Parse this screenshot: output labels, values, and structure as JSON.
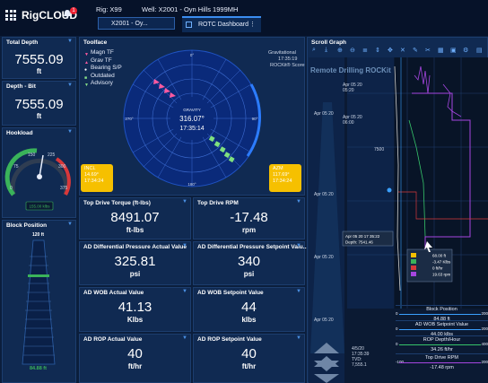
{
  "header": {
    "logo_rig": "Rig",
    "logo_cloud": "CLOUD",
    "notification_count": "1",
    "rig_label": "Rig: X99",
    "well_label": "Well: X2001 - Oyn Hills 1999MH",
    "rig_select_value": "X2001 - Oy...",
    "tab_label": "ROTC Dashboard",
    "tab_menu": "⋮"
  },
  "total_depth": {
    "title": "Total Depth",
    "value": "7555.09",
    "unit": "ft"
  },
  "depth_bit": {
    "title": "Depth - Bit",
    "value": "7555.09",
    "unit": "ft"
  },
  "hookload": {
    "title": "Hookload",
    "readout": "155.00 klbs",
    "ticks": [
      "0",
      "75",
      "150",
      "225",
      "300",
      "375"
    ]
  },
  "block_position": {
    "title": "Block Position",
    "top_value": "120",
    "top_unit": "ft",
    "bottom_value": "84.88",
    "bottom_unit": "ft"
  },
  "toolface": {
    "title": "Toolface",
    "legend": [
      {
        "label": "Magn TF",
        "color": "#ff5aa0",
        "marker": "▼"
      },
      {
        "label": "Grav TF",
        "color": "#ff5aa0",
        "marker": "▲"
      },
      {
        "label": "Bearing S/P",
        "color": "#ffffff",
        "marker": "●"
      },
      {
        "label": "Outdated",
        "color": "#88e088",
        "marker": "■"
      },
      {
        "label": "Advisory",
        "color": "#88e088",
        "marker": "▼"
      }
    ],
    "side_title": "Gravitational",
    "side_time": "17:35:19",
    "side_score": "ROCKit® Score",
    "center_label": "GRAVITY",
    "center_value": "316.07°",
    "center_time": "17:35:14",
    "deg_0": "0°",
    "deg_90": "90°",
    "deg_180": "180°",
    "deg_270": "270°",
    "inc": {
      "label": "INCL",
      "value": "14.69°",
      "time": "17:34:24"
    },
    "azm": {
      "label": "AZM",
      "value": "117.69°",
      "time": "17:34:24"
    }
  },
  "metrics": [
    {
      "title": "Top Drive Torque (ft-lbs)",
      "value": "8491.07",
      "unit": "ft-lbs"
    },
    {
      "title": "Top Drive RPM",
      "value": "-17.48",
      "unit": "rpm"
    },
    {
      "title": "AD Differential Pressure Actual Value",
      "value": "325.81",
      "unit": "psi"
    },
    {
      "title": "AD Differential Pressure Setpoint Valu...",
      "value": "340",
      "unit": "psi"
    },
    {
      "title": "AD WOB Actual Value",
      "value": "41.13",
      "unit": "Klbs"
    },
    {
      "title": "AD WOB Setpoint Value",
      "value": "44",
      "unit": "klbs"
    },
    {
      "title": "AD ROP Actual Value",
      "value": "40",
      "unit": "ft/hr"
    },
    {
      "title": "AD ROP Setpoint Value",
      "value": "40",
      "unit": "ft/hr"
    }
  ],
  "scroll_graph": {
    "title": "Scroll Graph",
    "overlay_title": "Remote Drilling ROCKit",
    "time_labels": [
      {
        "date": "Apr 05 20",
        "time": "05:20"
      },
      {
        "date": "Apr 05 20",
        "time": "06:00"
      }
    ],
    "left_times": [
      "Apr 05 20",
      "Apr 05 20",
      "Apr 05 20",
      "Apr 05 20"
    ],
    "depth_label": "7500",
    "tooltip_time": "Apr 05 20 17 35:22",
    "tooltip_depth": "Depth: 7541.46",
    "tooltip_values": [
      "68.00 ft",
      "-3.47 Klbs",
      "0 ft/hr",
      "19.63 rpm"
    ],
    "bottom_stamp": [
      "4/5/20",
      "17:35:39",
      "TVD:",
      "7,555.1"
    ],
    "tracks": [
      {
        "label": "Block Position",
        "min": "0",
        "max": "200",
        "value": "84.88 ft",
        "color": "#3aa0ff"
      },
      {
        "label": "AD WOB Setpoint Value",
        "min": "0",
        "max": "200",
        "value": "44.00 klbs",
        "color": "#3aa0ff"
      },
      {
        "label": "ROP Depth/Hour",
        "min": "0",
        "max": "400",
        "value": "34.26 ft/hr",
        "color": "#36c46a"
      },
      {
        "label": "Top Drive RPM",
        "min": "-100",
        "max": "200",
        "value": "-17.48 rpm",
        "color": "#a646e0"
      }
    ]
  }
}
